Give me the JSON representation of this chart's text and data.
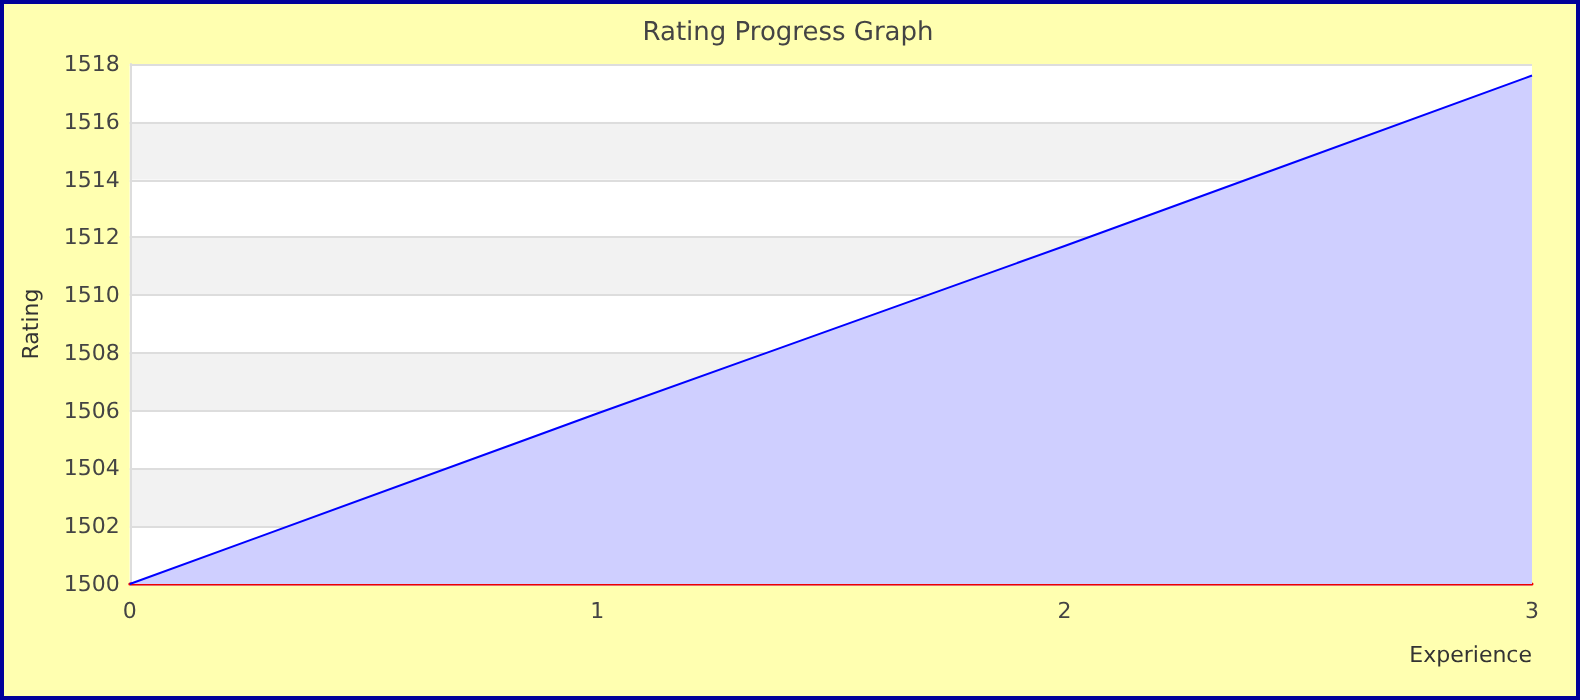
{
  "chart_data": {
    "type": "area",
    "title": "Rating Progress Graph",
    "xlabel": "Experience",
    "ylabel": "Rating",
    "x": [
      0,
      1,
      2,
      3
    ],
    "series": [
      {
        "color": "#0000ff",
        "values": [
          1500,
          1505.9,
          1511.7,
          1517.6
        ]
      }
    ],
    "xlim": [
      0,
      3
    ],
    "xticks": [
      0,
      1,
      2,
      3
    ],
    "ylim": [
      1500,
      1518
    ],
    "yticks": [
      1500,
      1502,
      1504,
      1506,
      1508,
      1510,
      1512,
      1514,
      1516,
      1518
    ],
    "grid": "y",
    "marker": "none",
    "line_style": "solid"
  }
}
